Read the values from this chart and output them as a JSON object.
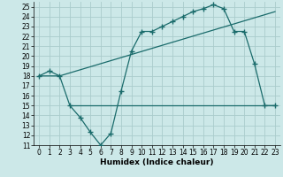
{
  "bg_color": "#cce8e8",
  "grid_color": "#aacccc",
  "line_color": "#1a6b6b",
  "xlabel": "Humidex (Indice chaleur)",
  "xlim": [
    -0.5,
    23.5
  ],
  "ylim": [
    11,
    25.5
  ],
  "xticks": [
    0,
    1,
    2,
    3,
    4,
    5,
    6,
    7,
    8,
    9,
    10,
    11,
    12,
    13,
    14,
    15,
    16,
    17,
    18,
    19,
    20,
    21,
    22,
    23
  ],
  "yticks": [
    11,
    12,
    13,
    14,
    15,
    16,
    17,
    18,
    19,
    20,
    21,
    22,
    23,
    24,
    25
  ],
  "line1_x": [
    0,
    2,
    23
  ],
  "line1_y": [
    18.0,
    18.0,
    24.5
  ],
  "line2_x": [
    0,
    1,
    2,
    3,
    4,
    5,
    6,
    7,
    8,
    9,
    10,
    11,
    12,
    13,
    14,
    15,
    16,
    17,
    18,
    19,
    20,
    21,
    22,
    23
  ],
  "line2_y": [
    18.0,
    18.5,
    18.0,
    15.0,
    13.8,
    12.3,
    11.0,
    12.2,
    16.5,
    20.5,
    22.5,
    22.5,
    23.0,
    23.5,
    24.0,
    24.5,
    24.8,
    25.2,
    24.8,
    22.5,
    22.5,
    19.2,
    15.0,
    15.0
  ],
  "line3_x": [
    3,
    7,
    18,
    22,
    23
  ],
  "line3_y": [
    15.0,
    15.0,
    15.0,
    15.0,
    15.0
  ],
  "tick_fontsize": 5.5,
  "xlabel_fontsize": 6.5
}
